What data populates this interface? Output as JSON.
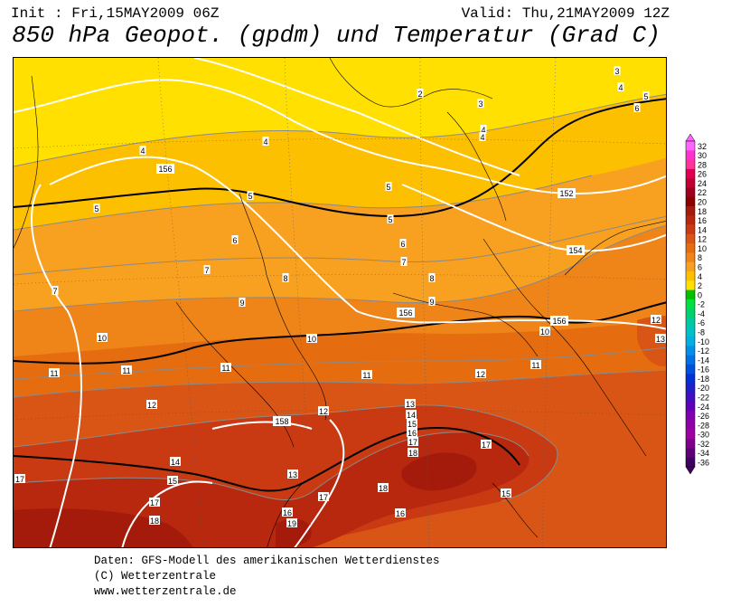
{
  "header": {
    "init": "Init : Fri,15MAY2009 06Z",
    "valid": "Valid: Thu,21MAY2009 12Z",
    "title": "850 hPa Geopot. (gpdm) und Temperatur (Grad C)"
  },
  "footer": {
    "line1": "Daten: GFS-Modell des amerikanischen Wetterdienstes",
    "line2": "(C) Wetterzentrale",
    "line3": "www.wetterzentrale.de"
  },
  "legend": {
    "values": [
      "32",
      "30",
      "28",
      "26",
      "24",
      "22",
      "20",
      "18",
      "16",
      "14",
      "12",
      "10",
      "8",
      "6",
      "4",
      "2",
      "0",
      "-2",
      "-4",
      "-6",
      "-8",
      "-10",
      "-12",
      "-14",
      "-16",
      "-18",
      "-20",
      "-22",
      "-24",
      "-26",
      "-28",
      "-30",
      "-32",
      "-34",
      "-36"
    ],
    "colors": [
      "#ff66ff",
      "#ff33cc",
      "#ff3399",
      "#e00050",
      "#c00030",
      "#a00020",
      "#8b0000",
      "#a51b0b",
      "#b8280f",
      "#c93a12",
      "#d85515",
      "#e66c10",
      "#ef8418",
      "#f8a020",
      "#fcc000",
      "#ffe000",
      "#00c000",
      "#00e040",
      "#00d070",
      "#00c8a0",
      "#00c0c8",
      "#00b0e0",
      "#0090e8",
      "#0070e8",
      "#0050e0",
      "#0030d8",
      "#2020c8",
      "#4010c0",
      "#6000b8",
      "#8000b0",
      "#9000a8",
      "#a000a0",
      "#80008a",
      "#600078",
      "#400060"
    ]
  },
  "map_labels": {
    "isotherms": [
      "3",
      "4",
      "5",
      "6",
      "2",
      "3",
      "4",
      "4",
      "4",
      "4",
      "5",
      "5",
      "5",
      "5",
      "6",
      "6",
      "7",
      "7",
      "7",
      "8",
      "8",
      "9",
      "9",
      "10",
      "10",
      "10",
      "11",
      "11",
      "11",
      "11",
      "11",
      "12",
      "12",
      "12",
      "12",
      "13",
      "13",
      "13",
      "14",
      "14",
      "15",
      "15",
      "15",
      "16",
      "16",
      "16",
      "17",
      "17",
      "17",
      "17",
      "17",
      "18",
      "18",
      "18",
      "19"
    ],
    "geopotential": [
      "156",
      "152",
      "154",
      "156",
      "156",
      "158"
    ]
  }
}
